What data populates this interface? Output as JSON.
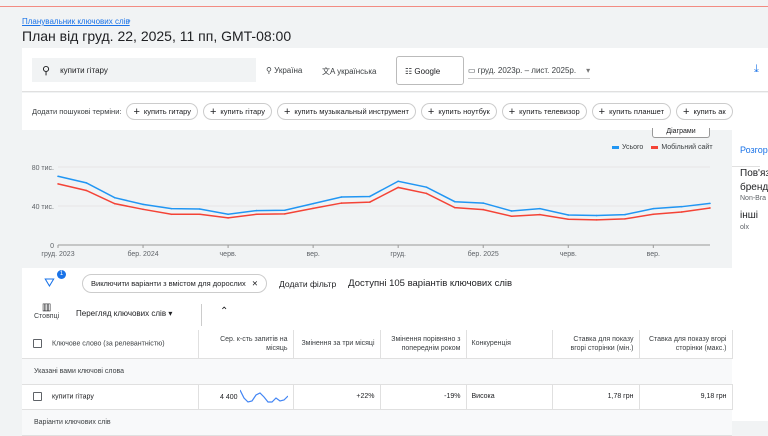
{
  "header": {
    "breadcrumb": "Планувальник ключових слів",
    "title": "План від груд. 22, 2025, 11 пп, GMT-08:00"
  },
  "searchbar": {
    "query": "купити гітару",
    "location": "Україна",
    "language": "українська",
    "network": "Google",
    "date_range": "груд. 2023р. – лист. 2025р."
  },
  "terms": {
    "label": "Додати пошукові терміни:",
    "chips": [
      "купить гитару",
      "купить гітару",
      "купить музыкальный инструмент",
      "купить ноутбук",
      "купить телевизор",
      "купить планшет",
      "купить ак"
    ]
  },
  "chart_toggle": "Діаграми",
  "chart_data": {
    "type": "line",
    "x": [
      "груд. 2023",
      "січ. 2024",
      "лют. 2024",
      "бер. 2024",
      "квіт. 2024",
      "трав. 2024",
      "черв. 2024",
      "лип. 2024",
      "серп. 2024",
      "вер. 2024",
      "жовт. 2024",
      "лист. 2024",
      "груд. 2024",
      "січ. 2025",
      "лют. 2025",
      "бер. 2025",
      "квіт. 2025",
      "трав. 2025",
      "черв. 2025",
      "лип. 2025",
      "серп. 2025",
      "вер. 2025",
      "жовт. 2025",
      "лист. 2025"
    ],
    "series": [
      {
        "name": "Усього",
        "color": "#2196f3",
        "values": [
          70500,
          63700,
          48500,
          41700,
          37300,
          36900,
          31500,
          35300,
          35600,
          42400,
          49200,
          49800,
          65400,
          59300,
          44400,
          43000,
          34900,
          37300,
          30800,
          30200,
          31200,
          37300,
          39300,
          42700
        ]
      },
      {
        "name": "Мобільний сайт",
        "color": "#f44336",
        "values": [
          62700,
          55900,
          42400,
          36600,
          31500,
          31500,
          27800,
          31500,
          31900,
          37600,
          43000,
          44000,
          59000,
          52900,
          38300,
          36300,
          29500,
          31200,
          26400,
          25800,
          26800,
          31500,
          33900,
          38000
        ]
      }
    ],
    "yticks": [
      "0",
      "40 тис.",
      "80 тис."
    ],
    "ytick_values": [
      0,
      40000,
      80000
    ],
    "ylim": [
      0,
      80000
    ],
    "xtick_labels": [
      {
        "i": 0,
        "label": "груд. 2023"
      },
      {
        "i": 3,
        "label": "бер. 2024"
      },
      {
        "i": 6,
        "label": "черв."
      },
      {
        "i": 9,
        "label": "вер."
      },
      {
        "i": 12,
        "label": "груд."
      },
      {
        "i": 15,
        "label": "бер. 2025"
      },
      {
        "i": 18,
        "label": "черв."
      },
      {
        "i": 21,
        "label": "вер."
      }
    ],
    "grid": true,
    "legend": "top-right"
  },
  "side": {
    "expand": "Розгор",
    "related": "Пов'яз",
    "brand": "бренд",
    "nonbrand": "Non-Bra",
    "others": "інші",
    "olx": "olx"
  },
  "filters": {
    "badge": "1",
    "chip": "Виключити варіанти з вмістом для дорослих",
    "add": "Додати фільтр",
    "available": "Доступні 105 варіантів ключових слів"
  },
  "toolbar": {
    "columns": "Стовпці",
    "view": "Перегляд ключових слів"
  },
  "table": {
    "headers": [
      "Ключове слово (за релевантністю)",
      "Сер. к-сть запитів на місяць",
      "Змінення за три місяці",
      "Змінення порівняно з попереднім роком",
      "Конкуренція",
      "Ставка для показу вгорі сторінки (мін.)",
      "Ставка для показу вгорі сторінки (макс.)"
    ],
    "group1": "Указані вами ключові слова",
    "rows": [
      {
        "keyword": "купити гітару",
        "avg": "4 400",
        "three": "+22%",
        "yoy": "-19%",
        "comp": "Висока",
        "min": "1,78 грн",
        "max": "9,18 грн"
      }
    ],
    "group2": "Варіанти ключових слів"
  }
}
